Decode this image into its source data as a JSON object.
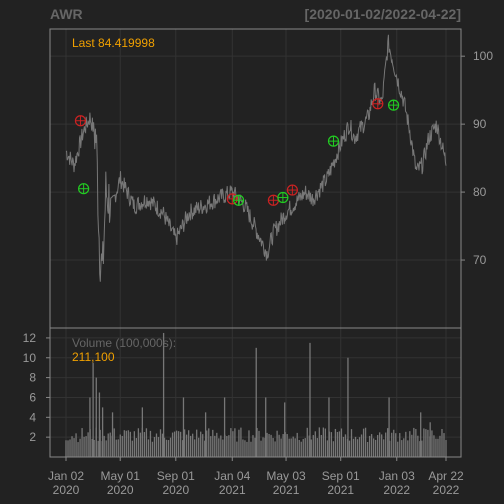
{
  "chart_data": [
    {
      "type": "line",
      "title": "AWR",
      "subtitle": "[2020-01-02/2022-04-22]",
      "last_label": "Last 84.419998",
      "ylim": [
        60,
        104
      ],
      "y_ticks": [
        70,
        80,
        90,
        100
      ],
      "grid": true,
      "x_ticks": [
        {
          "line1": "Jan 02",
          "line2": "2020"
        },
        {
          "line1": "May 01",
          "line2": "2020"
        },
        {
          "line1": "Sep 01",
          "line2": "2020"
        },
        {
          "line1": "Jan 04",
          "line2": "2021"
        },
        {
          "line1": "May 03",
          "line2": "2021"
        },
        {
          "line1": "Sep 01",
          "line2": "2021"
        },
        {
          "line1": "Jan 03",
          "line2": "2022"
        },
        {
          "line1": "Apr 22",
          "line2": "2022"
        }
      ],
      "x_dates": [
        "2020-01-02",
        "2020-05-01",
        "2020-09-01",
        "2021-01-04",
        "2021-05-03",
        "2021-09-01",
        "2022-01-03",
        "2022-04-22"
      ],
      "series": [
        {
          "dates": [
            "2020-01-02",
            "2020-01-20",
            "2020-02-10",
            "2020-02-24",
            "2020-03-09",
            "2020-03-16",
            "2020-03-23",
            "2020-03-30",
            "2020-04-13",
            "2020-05-01",
            "2020-06-01",
            "2020-07-01",
            "2020-08-03",
            "2020-09-01",
            "2020-10-01",
            "2020-11-02",
            "2020-12-01",
            "2021-01-04",
            "2021-02-01",
            "2021-03-01",
            "2021-03-22",
            "2021-04-05",
            "2021-05-03",
            "2021-06-01",
            "2021-06-15",
            "2021-07-01",
            "2021-08-02",
            "2021-09-01",
            "2021-09-20",
            "2021-10-01",
            "2021-11-01",
            "2021-11-15",
            "2021-12-01",
            "2021-12-15",
            "2022-01-03",
            "2022-01-20",
            "2022-02-01",
            "2022-02-15",
            "2022-03-01",
            "2022-03-15",
            "2022-04-01",
            "2022-04-22"
          ],
          "values": [
            86,
            84,
            89,
            91,
            88,
            72,
            68,
            80,
            78,
            82,
            78,
            79,
            77,
            73,
            77,
            78,
            79,
            80,
            78,
            74,
            71,
            74,
            77,
            79,
            80,
            79,
            82,
            87,
            90,
            88,
            91,
            95,
            93,
            102,
            97,
            93,
            89,
            83,
            84,
            88,
            90,
            84.42
          ]
        }
      ],
      "signals": [
        {
          "date": "2020-02-03",
          "value": 90.5,
          "kind": "sell",
          "color": "#cc2222"
        },
        {
          "date": "2020-02-10",
          "value": 80.5,
          "kind": "buy",
          "color": "#22cc22"
        },
        {
          "date": "2021-01-04",
          "value": 79,
          "kind": "sell",
          "color": "#cc2222"
        },
        {
          "date": "2021-01-18",
          "value": 78.8,
          "kind": "buy",
          "color": "#22cc22"
        },
        {
          "date": "2021-04-05",
          "value": 78.8,
          "kind": "sell",
          "color": "#cc2222"
        },
        {
          "date": "2021-04-26",
          "value": 79.2,
          "kind": "buy",
          "color": "#22cc22"
        },
        {
          "date": "2021-05-17",
          "value": 80.3,
          "kind": "sell",
          "color": "#cc2222"
        },
        {
          "date": "2021-08-16",
          "value": 87.5,
          "kind": "buy",
          "color": "#22cc22"
        },
        {
          "date": "2021-11-22",
          "value": 93,
          "kind": "sell",
          "color": "#cc2222"
        },
        {
          "date": "2021-12-27",
          "value": 92.8,
          "kind": "buy",
          "color": "#22cc22"
        }
      ]
    },
    {
      "type": "bar",
      "label": "Volume (100,000s):",
      "last_value": "211,100",
      "ylim": [
        0,
        13
      ],
      "y_ticks": [
        2,
        4,
        6,
        8,
        10,
        12
      ],
      "grid": true,
      "spikes": [
        {
          "date": "2020-02-24",
          "value": 6
        },
        {
          "date": "2020-03-02",
          "value": 9.5
        },
        {
          "date": "2020-03-09",
          "value": 8
        },
        {
          "date": "2020-03-16",
          "value": 6.5
        },
        {
          "date": "2020-03-23",
          "value": 5
        },
        {
          "date": "2020-04-14",
          "value": 4.5
        },
        {
          "date": "2020-06-19",
          "value": 5
        },
        {
          "date": "2020-08-05",
          "value": 12.5
        },
        {
          "date": "2020-09-18",
          "value": 6
        },
        {
          "date": "2020-11-06",
          "value": 4.5
        },
        {
          "date": "2020-12-18",
          "value": 6
        },
        {
          "date": "2021-02-26",
          "value": 11
        },
        {
          "date": "2021-03-19",
          "value": 6
        },
        {
          "date": "2021-04-30",
          "value": 5.5
        },
        {
          "date": "2021-06-25",
          "value": 11.5
        },
        {
          "date": "2021-08-06",
          "value": 6
        },
        {
          "date": "2021-09-17",
          "value": 10
        },
        {
          "date": "2021-12-17",
          "value": 6
        },
        {
          "date": "2022-02-25",
          "value": 4.5
        },
        {
          "date": "2022-03-18",
          "value": 3.5
        }
      ],
      "baseline_range": [
        1.5,
        3
      ],
      "last_bar": 2.11
    }
  ],
  "colors": {
    "background": "#222222",
    "frame": "#888888",
    "grid": "#333333",
    "price_line": "#777777",
    "volume_bar": "#777777",
    "axis_text": "#999999",
    "accent": "#f0a000",
    "title": "#666666"
  }
}
